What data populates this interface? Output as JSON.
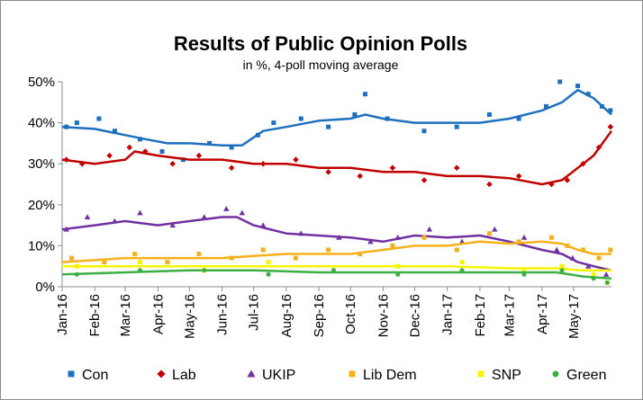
{
  "chart_data": {
    "type": "line",
    "title": "Results of Public Opinion Polls",
    "subtitle": "in %, 4-poll moving average",
    "xlabel": "",
    "ylabel": "",
    "ylim": [
      0,
      50
    ],
    "xlim": [
      "2016-01-01",
      "2017-06-06"
    ],
    "y_ticks": [
      "0%",
      "10%",
      "20%",
      "30%",
      "40%",
      "50%"
    ],
    "x_ticks": [
      "Jan-16",
      "Feb-16",
      "Mar-16",
      "Apr-16",
      "May-16",
      "Jun-16",
      "Jul-16",
      "Aug-16",
      "Sep-16",
      "Oct-16",
      "Nov-16",
      "Dec-16",
      "Jan-17",
      "Feb-17",
      "Mar-17",
      "Apr-17",
      "May-17"
    ],
    "x_tick_dates": [
      "2016-01-01",
      "2016-02-01",
      "2016-03-01",
      "2016-04-01",
      "2016-05-01",
      "2016-06-01",
      "2016-07-01",
      "2016-08-01",
      "2016-09-01",
      "2016-10-01",
      "2016-11-01",
      "2016-12-01",
      "2017-01-01",
      "2017-02-01",
      "2017-03-01",
      "2017-04-01",
      "2017-05-01"
    ],
    "grid": false,
    "legend_position": "bottom",
    "series": [
      {
        "name": "Con",
        "color": "#1f6fbf",
        "marker": "square",
        "moving_average": [
          [
            "2016-01-01",
            39
          ],
          [
            "2016-02-01",
            38.5
          ],
          [
            "2016-03-01",
            37
          ],
          [
            "2016-03-20",
            36
          ],
          [
            "2016-04-10",
            35
          ],
          [
            "2016-05-01",
            35
          ],
          [
            "2016-06-01",
            34.5
          ],
          [
            "2016-06-20",
            34.5
          ],
          [
            "2016-07-10",
            38
          ],
          [
            "2016-08-01",
            39
          ],
          [
            "2016-09-01",
            40.5
          ],
          [
            "2016-10-01",
            41
          ],
          [
            "2016-10-15",
            42
          ],
          [
            "2016-11-01",
            41
          ],
          [
            "2016-12-01",
            40
          ],
          [
            "2017-01-01",
            40
          ],
          [
            "2017-02-01",
            40
          ],
          [
            "2017-03-01",
            41
          ],
          [
            "2017-04-01",
            43
          ],
          [
            "2017-04-20",
            45
          ],
          [
            "2017-05-05",
            48
          ],
          [
            "2017-05-20",
            46
          ],
          [
            "2017-06-06",
            42
          ]
        ],
        "polls": [
          [
            "2016-01-05",
            39
          ],
          [
            "2016-01-15",
            40
          ],
          [
            "2016-02-05",
            41
          ],
          [
            "2016-02-20",
            38
          ],
          [
            "2016-03-15",
            36
          ],
          [
            "2016-04-05",
            33
          ],
          [
            "2016-04-25",
            31
          ],
          [
            "2016-05-20",
            35
          ],
          [
            "2016-06-10",
            34
          ],
          [
            "2016-07-05",
            37
          ],
          [
            "2016-07-20",
            40
          ],
          [
            "2016-08-15",
            41
          ],
          [
            "2016-09-10",
            39
          ],
          [
            "2016-10-05",
            42
          ],
          [
            "2016-10-15",
            47
          ],
          [
            "2016-11-05",
            41
          ],
          [
            "2016-12-10",
            38
          ],
          [
            "2017-01-10",
            39
          ],
          [
            "2017-02-10",
            42
          ],
          [
            "2017-03-10",
            41
          ],
          [
            "2017-04-05",
            44
          ],
          [
            "2017-04-18",
            50
          ],
          [
            "2017-05-05",
            49
          ],
          [
            "2017-05-15",
            47
          ],
          [
            "2017-05-28",
            44
          ],
          [
            "2017-06-05",
            43
          ]
        ]
      },
      {
        "name": "Lab",
        "color": "#c00000",
        "marker": "diamond",
        "moving_average": [
          [
            "2016-01-01",
            31
          ],
          [
            "2016-02-01",
            30
          ],
          [
            "2016-03-01",
            31
          ],
          [
            "2016-03-10",
            33
          ],
          [
            "2016-04-01",
            32
          ],
          [
            "2016-05-01",
            31
          ],
          [
            "2016-06-01",
            31
          ],
          [
            "2016-07-01",
            30
          ],
          [
            "2016-08-01",
            30
          ],
          [
            "2016-09-01",
            29
          ],
          [
            "2016-10-01",
            29
          ],
          [
            "2016-11-01",
            28
          ],
          [
            "2016-12-01",
            28
          ],
          [
            "2017-01-01",
            27
          ],
          [
            "2017-02-01",
            27
          ],
          [
            "2017-03-01",
            26.5
          ],
          [
            "2017-04-01",
            25
          ],
          [
            "2017-04-20",
            26
          ],
          [
            "2017-05-05",
            29
          ],
          [
            "2017-05-20",
            32
          ],
          [
            "2017-06-06",
            38
          ]
        ],
        "polls": [
          [
            "2016-01-05",
            31
          ],
          [
            "2016-01-20",
            30
          ],
          [
            "2016-02-15",
            32
          ],
          [
            "2016-03-05",
            34
          ],
          [
            "2016-03-20",
            33
          ],
          [
            "2016-04-15",
            30
          ],
          [
            "2016-05-10",
            32
          ],
          [
            "2016-06-10",
            29
          ],
          [
            "2016-07-10",
            30
          ],
          [
            "2016-08-10",
            31
          ],
          [
            "2016-09-10",
            28
          ],
          [
            "2016-10-10",
            27
          ],
          [
            "2016-11-10",
            29
          ],
          [
            "2016-12-10",
            26
          ],
          [
            "2017-01-10",
            29
          ],
          [
            "2017-02-10",
            25
          ],
          [
            "2017-03-10",
            27
          ],
          [
            "2017-04-10",
            25
          ],
          [
            "2017-04-25",
            26
          ],
          [
            "2017-05-10",
            30
          ],
          [
            "2017-05-25",
            34
          ],
          [
            "2017-06-05",
            39
          ]
        ]
      },
      {
        "name": "UKIP",
        "color": "#7030a0",
        "marker": "triangle",
        "moving_average": [
          [
            "2016-01-01",
            14
          ],
          [
            "2016-02-01",
            15
          ],
          [
            "2016-03-01",
            16
          ],
          [
            "2016-04-01",
            15
          ],
          [
            "2016-05-01",
            16
          ],
          [
            "2016-06-01",
            17
          ],
          [
            "2016-06-15",
            17
          ],
          [
            "2016-07-01",
            15
          ],
          [
            "2016-08-01",
            13
          ],
          [
            "2016-09-01",
            12.5
          ],
          [
            "2016-10-01",
            12
          ],
          [
            "2016-11-01",
            11
          ],
          [
            "2016-12-01",
            12.5
          ],
          [
            "2017-01-01",
            12
          ],
          [
            "2017-02-01",
            12.5
          ],
          [
            "2017-03-01",
            11
          ],
          [
            "2017-04-01",
            9
          ],
          [
            "2017-04-20",
            8
          ],
          [
            "2017-05-05",
            6
          ],
          [
            "2017-05-20",
            5
          ],
          [
            "2017-06-06",
            4
          ]
        ],
        "polls": [
          [
            "2016-01-05",
            14
          ],
          [
            "2016-01-25",
            17
          ],
          [
            "2016-02-20",
            16
          ],
          [
            "2016-03-15",
            18
          ],
          [
            "2016-04-15",
            15
          ],
          [
            "2016-05-15",
            17
          ],
          [
            "2016-06-05",
            19
          ],
          [
            "2016-06-20",
            18
          ],
          [
            "2016-07-10",
            15
          ],
          [
            "2016-08-15",
            13
          ],
          [
            "2016-09-20",
            12
          ],
          [
            "2016-10-20",
            11
          ],
          [
            "2016-11-15",
            12
          ],
          [
            "2016-12-15",
            14
          ],
          [
            "2017-01-15",
            11
          ],
          [
            "2017-02-15",
            14
          ],
          [
            "2017-03-15",
            12
          ],
          [
            "2017-04-15",
            9
          ],
          [
            "2017-04-30",
            7
          ],
          [
            "2017-05-15",
            5
          ],
          [
            "2017-06-01",
            3
          ]
        ]
      },
      {
        "name": "Lib Dem",
        "color": "#f5b01a",
        "marker": "square",
        "moving_average": [
          [
            "2016-01-01",
            6
          ],
          [
            "2016-02-01",
            6.5
          ],
          [
            "2016-03-01",
            7
          ],
          [
            "2016-04-01",
            7
          ],
          [
            "2016-05-01",
            7
          ],
          [
            "2016-06-01",
            7
          ],
          [
            "2016-07-01",
            7.5
          ],
          [
            "2016-08-01",
            8
          ],
          [
            "2016-09-01",
            8
          ],
          [
            "2016-10-01",
            8
          ],
          [
            "2016-11-01",
            9
          ],
          [
            "2016-12-01",
            10
          ],
          [
            "2017-01-01",
            10
          ],
          [
            "2017-02-01",
            11
          ],
          [
            "2017-03-01",
            10.5
          ],
          [
            "2017-04-01",
            11
          ],
          [
            "2017-04-20",
            10.5
          ],
          [
            "2017-05-05",
            9
          ],
          [
            "2017-05-20",
            8
          ],
          [
            "2017-06-06",
            8
          ]
        ],
        "polls": [
          [
            "2016-01-10",
            7
          ],
          [
            "2016-02-10",
            6
          ],
          [
            "2016-03-10",
            8
          ],
          [
            "2016-04-10",
            6
          ],
          [
            "2016-05-10",
            8
          ],
          [
            "2016-06-10",
            7
          ],
          [
            "2016-07-10",
            9
          ],
          [
            "2016-08-10",
            7
          ],
          [
            "2016-09-10",
            9
          ],
          [
            "2016-10-10",
            8
          ],
          [
            "2016-11-10",
            10
          ],
          [
            "2016-12-10",
            12
          ],
          [
            "2017-01-10",
            9
          ],
          [
            "2017-02-10",
            13
          ],
          [
            "2017-03-10",
            11
          ],
          [
            "2017-04-10",
            12
          ],
          [
            "2017-04-25",
            10
          ],
          [
            "2017-05-10",
            9
          ],
          [
            "2017-05-25",
            7
          ],
          [
            "2017-06-05",
            9
          ]
        ]
      },
      {
        "name": "SNP",
        "color": "#f5f500",
        "marker": "square",
        "moving_average": [
          [
            "2016-01-01",
            5
          ],
          [
            "2016-03-01",
            5
          ],
          [
            "2016-05-01",
            5
          ],
          [
            "2016-07-01",
            5
          ],
          [
            "2016-09-01",
            5
          ],
          [
            "2016-11-01",
            5
          ],
          [
            "2017-01-01",
            5
          ],
          [
            "2017-03-01",
            4.5
          ],
          [
            "2017-04-15",
            4.5
          ],
          [
            "2017-05-10",
            4
          ],
          [
            "2017-06-06",
            4
          ]
        ],
        "polls": [
          [
            "2016-01-15",
            5
          ],
          [
            "2016-03-15",
            6
          ],
          [
            "2016-05-15",
            4
          ],
          [
            "2016-07-15",
            6
          ],
          [
            "2016-09-15",
            4
          ],
          [
            "2016-11-15",
            5
          ],
          [
            "2017-01-15",
            6
          ],
          [
            "2017-03-15",
            4
          ],
          [
            "2017-04-20",
            5
          ],
          [
            "2017-05-20",
            3
          ],
          [
            "2017-06-02",
            1
          ]
        ]
      },
      {
        "name": "Green",
        "color": "#3cb043",
        "marker": "circle",
        "moving_average": [
          [
            "2016-01-01",
            3
          ],
          [
            "2016-03-01",
            3.5
          ],
          [
            "2016-05-01",
            4
          ],
          [
            "2016-07-01",
            4
          ],
          [
            "2016-09-01",
            3.5
          ],
          [
            "2016-11-01",
            3.5
          ],
          [
            "2017-01-01",
            3.5
          ],
          [
            "2017-03-01",
            3.5
          ],
          [
            "2017-04-15",
            3.5
          ],
          [
            "2017-05-10",
            2.5
          ],
          [
            "2017-06-06",
            2
          ]
        ],
        "polls": [
          [
            "2016-01-15",
            3
          ],
          [
            "2016-03-15",
            4
          ],
          [
            "2016-05-15",
            4
          ],
          [
            "2016-07-15",
            3
          ],
          [
            "2016-09-15",
            4
          ],
          [
            "2016-11-15",
            3
          ],
          [
            "2017-01-15",
            4
          ],
          [
            "2017-03-15",
            3
          ],
          [
            "2017-04-20",
            4
          ],
          [
            "2017-05-20",
            2
          ],
          [
            "2017-06-02",
            1
          ]
        ]
      }
    ]
  }
}
